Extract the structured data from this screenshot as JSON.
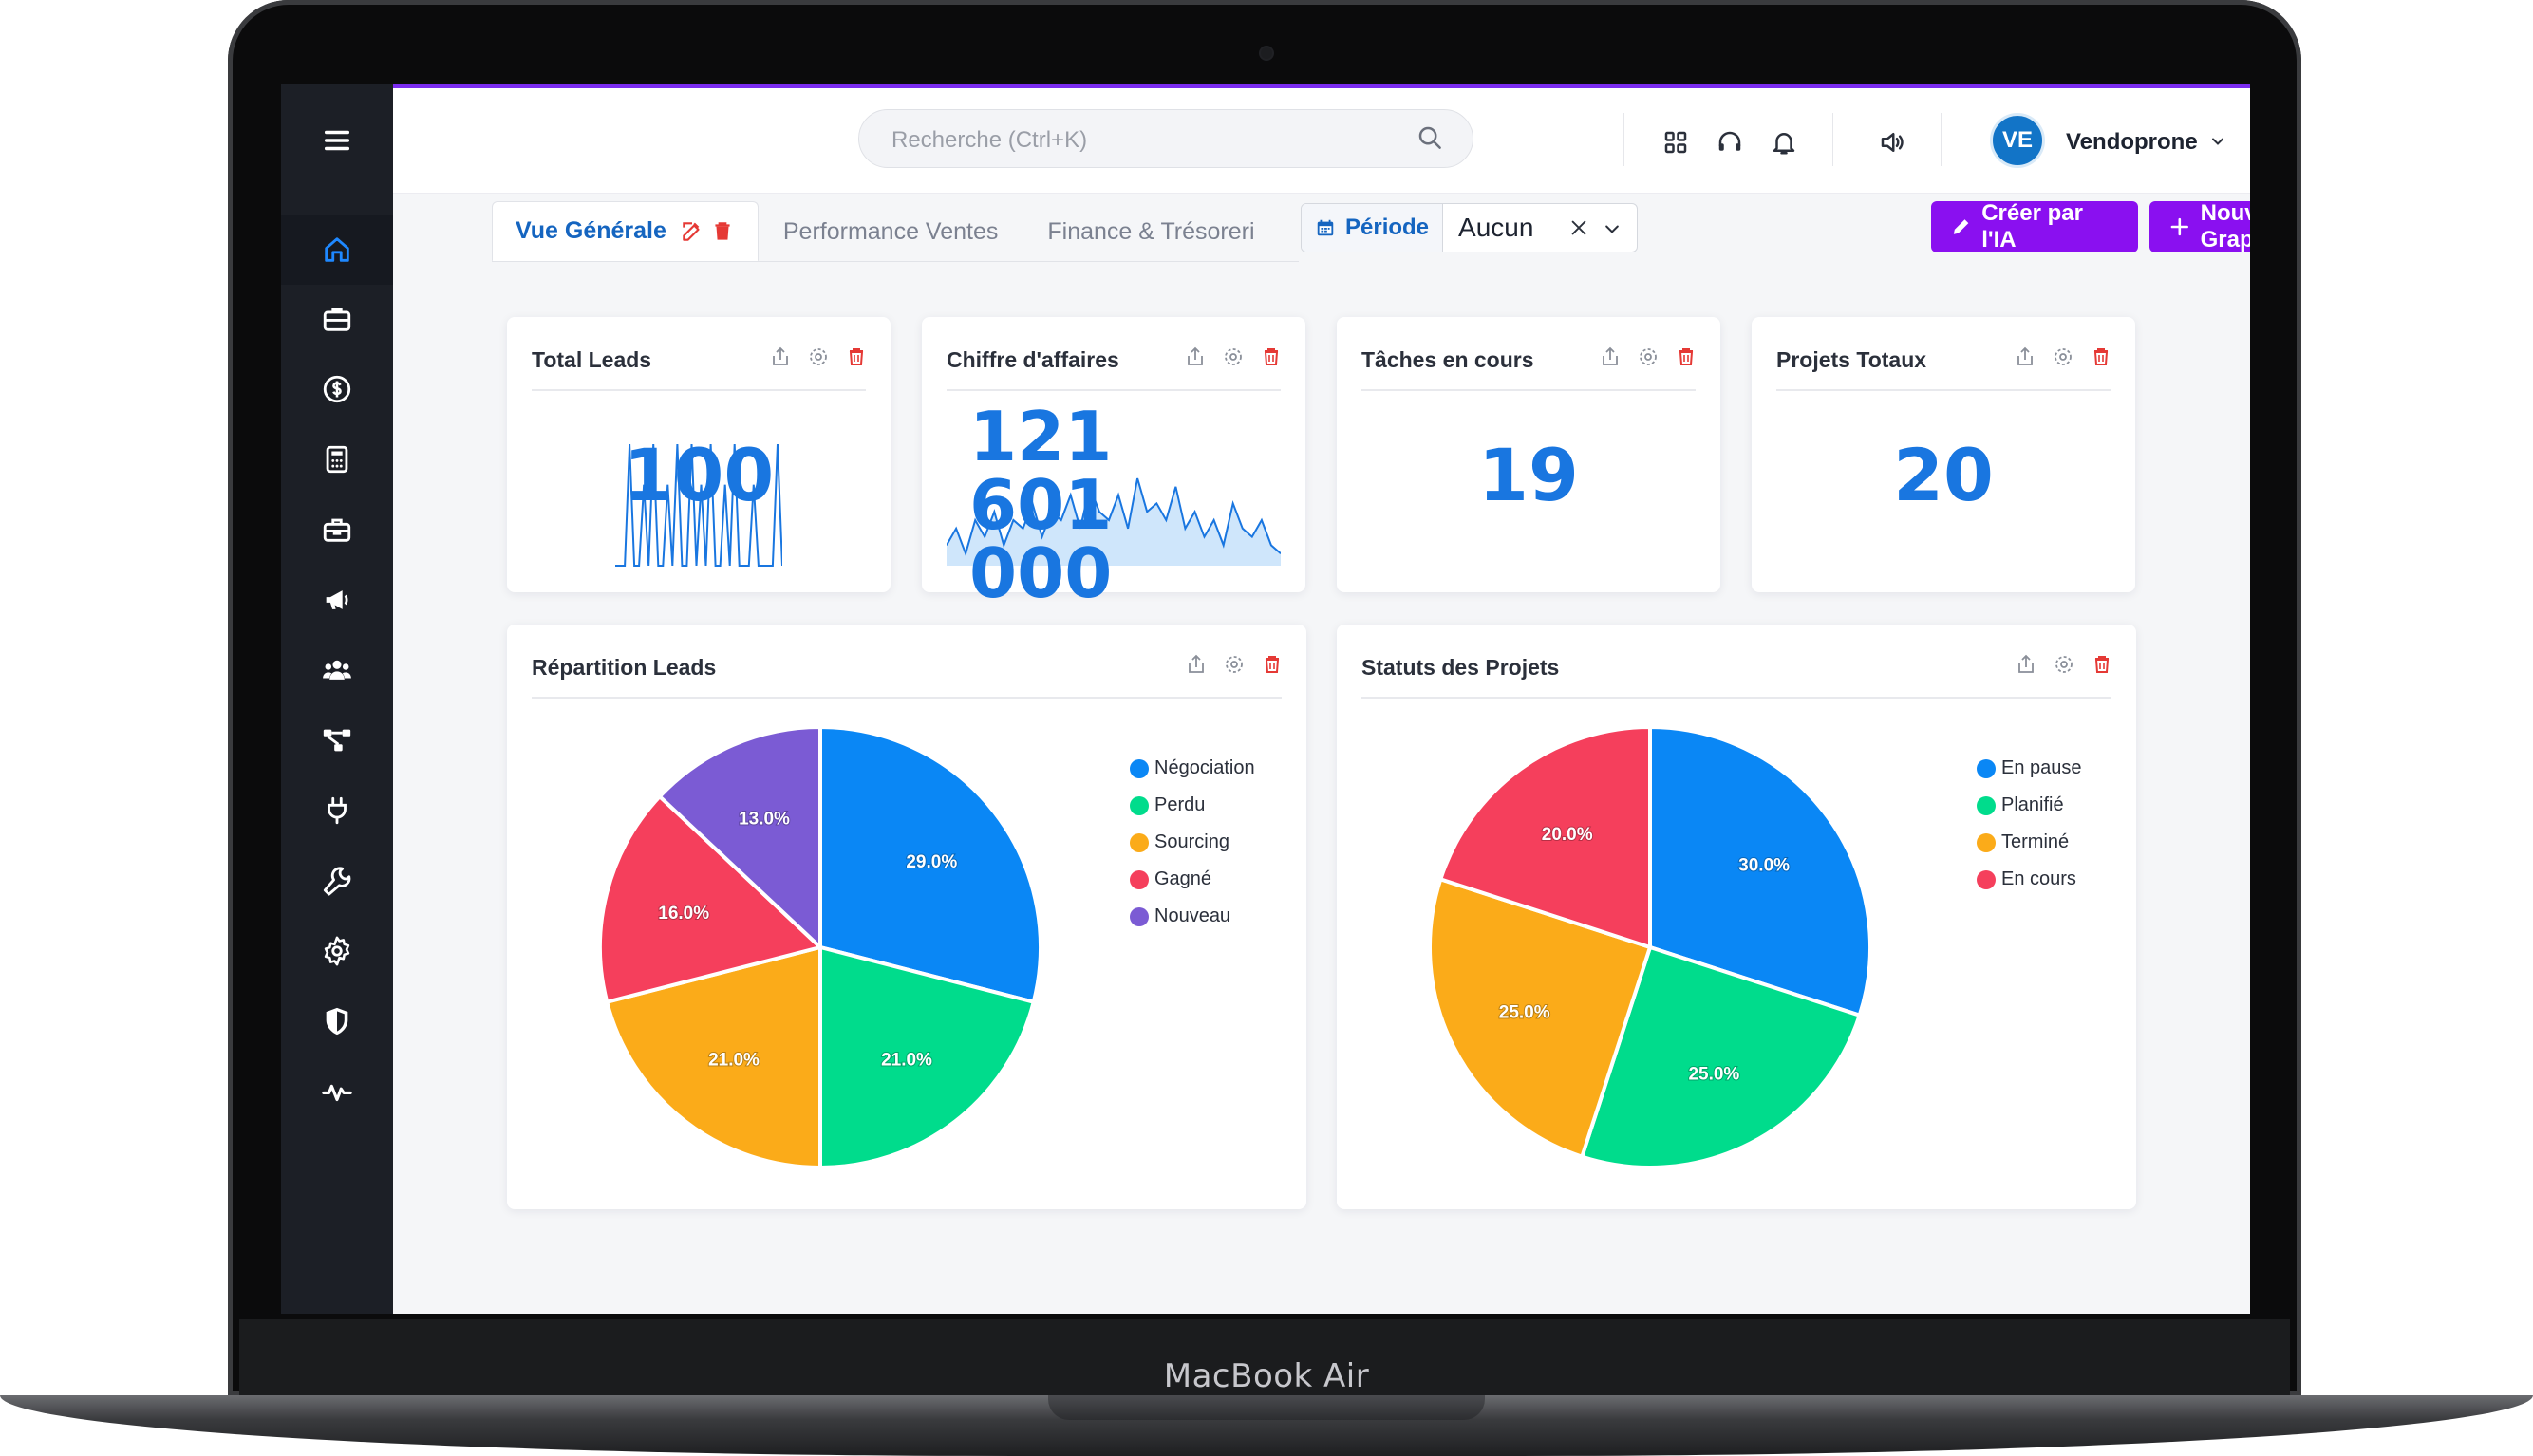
{
  "device": {
    "label": "MacBook Air"
  },
  "search": {
    "placeholder": "Recherche (Ctrl+K)"
  },
  "user": {
    "initials": "VE",
    "name": "Vendoprone"
  },
  "sidebar": {
    "items": [
      {
        "icon": "home-icon",
        "active": true
      },
      {
        "icon": "briefcase-icon"
      },
      {
        "icon": "dollar-icon"
      },
      {
        "icon": "calculator-icon"
      },
      {
        "icon": "toolbox-icon"
      },
      {
        "icon": "megaphone-icon"
      },
      {
        "icon": "users-icon"
      },
      {
        "icon": "workflow-icon"
      },
      {
        "icon": "plug-icon"
      },
      {
        "icon": "wrench-icon"
      },
      {
        "icon": "gear-icon"
      },
      {
        "icon": "shield-icon"
      },
      {
        "icon": "activity-icon"
      }
    ]
  },
  "tabs": [
    {
      "label": "Vue Générale",
      "active": true
    },
    {
      "label": "Performance Ventes"
    },
    {
      "label": "Finance & Trésoreri"
    }
  ],
  "filter": {
    "label": "Période",
    "value": "Aucun"
  },
  "buttons": {
    "ai": "Créer par l'IA",
    "new_chart": "Nouveau Graphique"
  },
  "colors": {
    "accent": "#8a10f0",
    "kpi": "#1976e0",
    "sidebar": "#1c1f26",
    "delete": "#e53935"
  },
  "kpis": [
    {
      "title": "Total Leads",
      "value": "100",
      "sparkline": [
        0,
        0,
        0,
        3,
        0,
        0,
        2,
        0,
        3,
        0,
        0,
        2,
        0,
        3,
        0,
        0,
        3,
        0,
        2,
        0,
        3,
        0,
        0,
        2,
        0,
        3,
        0,
        0,
        0,
        2,
        0,
        0,
        0,
        0,
        3,
        0
      ]
    },
    {
      "title": "Chiffre d'affaires",
      "value": "121 601 000",
      "sparkline": [
        2,
        4,
        1,
        5,
        3,
        6,
        2,
        5,
        4,
        7,
        3,
        6,
        5,
        8,
        4,
        9,
        6,
        5,
        8,
        4,
        10,
        6,
        7,
        5,
        9,
        4,
        6,
        3,
        5,
        2,
        7,
        4,
        3,
        5,
        2,
        1
      ]
    },
    {
      "title": "Tâches en cours",
      "value": "19"
    },
    {
      "title": "Projets Totaux",
      "value": "20"
    }
  ],
  "chart_data": [
    {
      "type": "pie",
      "title": "Répartition Leads",
      "categories": [
        "Négociation",
        "Perdu",
        "Sourcing",
        "Gagné",
        "Nouveau"
      ],
      "values": [
        29.0,
        21.0,
        21.0,
        16.0,
        13.0
      ],
      "labels": [
        "29.0%",
        "21.0%",
        "21.0%",
        "16.0%",
        "13.0%"
      ],
      "colors": [
        "#0a87f5",
        "#00dc8c",
        "#fbab19",
        "#f53f5c",
        "#7b5bd4"
      ],
      "legend": "right"
    },
    {
      "type": "pie",
      "title": "Statuts des Projets",
      "categories": [
        "En pause",
        "Planifié",
        "Terminé",
        "En cours"
      ],
      "values": [
        30.0,
        25.0,
        25.0,
        20.0
      ],
      "labels": [
        "30.0%",
        "25.0%",
        "25.0%",
        "20.0%"
      ],
      "colors": [
        "#0a87f5",
        "#00dc8c",
        "#fbab19",
        "#f53f5c"
      ],
      "legend": "right"
    }
  ]
}
